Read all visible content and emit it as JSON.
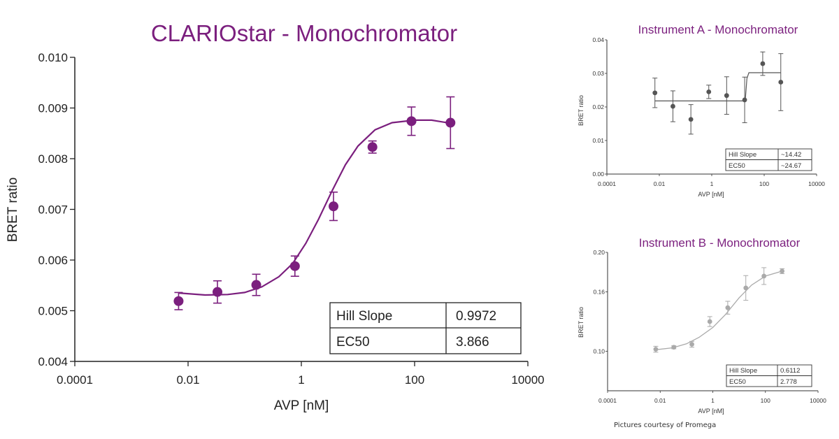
{
  "footer": {
    "credit": "Pictures courtesy of Promega"
  },
  "chart_data": [
    {
      "type": "scatter",
      "title": "CLARIOstar - Monochromator",
      "xlabel": "AVP [nM]",
      "ylabel": "BRET ratio",
      "x_scale": "log",
      "xlim": [
        0.0001,
        10000
      ],
      "ylim": [
        0.004,
        0.01
      ],
      "x_ticks": [
        "0.0001",
        "0.01",
        "1",
        "100",
        "10000"
      ],
      "y_ticks": [
        "0.004",
        "0.005",
        "0.006",
        "0.007",
        "0.008",
        "0.009",
        "0.010"
      ],
      "color": "#7b1f7e",
      "points": [
        {
          "x": 0.0068,
          "y": 0.00519,
          "err": 0.00017
        },
        {
          "x": 0.033,
          "y": 0.00537,
          "err": 0.00022
        },
        {
          "x": 0.16,
          "y": 0.00551,
          "err": 0.00021
        },
        {
          "x": 0.77,
          "y": 0.00588,
          "err": 0.0002
        },
        {
          "x": 3.7,
          "y": 0.00706,
          "err": 0.00028
        },
        {
          "x": 18,
          "y": 0.00823,
          "err": 0.00012
        },
        {
          "x": 88,
          "y": 0.00874,
          "err": 0.00028
        },
        {
          "x": 430,
          "y": 0.00871,
          "err": 0.00051
        }
      ],
      "fit_curve": [
        [
          0.0068,
          0.00535
        ],
        [
          0.02,
          0.00531
        ],
        [
          0.05,
          0.00532
        ],
        [
          0.1,
          0.00536
        ],
        [
          0.2,
          0.00547
        ],
        [
          0.4,
          0.00567
        ],
        [
          0.7,
          0.00593
        ],
        [
          1.2,
          0.00633
        ],
        [
          2,
          0.0068
        ],
        [
          3.5,
          0.00737
        ],
        [
          6,
          0.00788
        ],
        [
          10,
          0.00825
        ],
        [
          20,
          0.00857
        ],
        [
          40,
          0.00871
        ],
        [
          100,
          0.00876
        ],
        [
          200,
          0.00876
        ],
        [
          430,
          0.0087
        ]
      ],
      "table": [
        {
          "label": "Hill Slope",
          "value": "0.9972"
        },
        {
          "label": "EC50",
          "value": "3.866"
        }
      ]
    },
    {
      "type": "scatter",
      "title": "Instrument A - Monochromator",
      "xlabel": "AVP [nM]",
      "ylabel": "BRET ratio",
      "x_scale": "log",
      "xlim": [
        0.0001,
        10000
      ],
      "ylim": [
        0,
        0.04
      ],
      "x_ticks": [
        "0.0001",
        "0.01",
        "1",
        "100",
        "10000"
      ],
      "y_ticks": [
        "0.00",
        "0.01",
        "0.02",
        "0.03",
        "0.04"
      ],
      "color": "#555555",
      "points": [
        {
          "x": 0.0068,
          "y": 0.0242,
          "err": 0.0044
        },
        {
          "x": 0.033,
          "y": 0.0202,
          "err": 0.0046
        },
        {
          "x": 0.16,
          "y": 0.0163,
          "err": 0.0044
        },
        {
          "x": 0.77,
          "y": 0.0245,
          "err": 0.002
        },
        {
          "x": 3.7,
          "y": 0.0234,
          "err": 0.0056
        },
        {
          "x": 18,
          "y": 0.0221,
          "err": 0.0068
        },
        {
          "x": 88,
          "y": 0.0329,
          "err": 0.0035
        },
        {
          "x": 430,
          "y": 0.0274,
          "err": 0.0085
        }
      ],
      "fit_curve": [
        [
          0.0068,
          0.0218
        ],
        [
          16,
          0.0218
        ],
        [
          19,
          0.0222
        ],
        [
          22,
          0.0285
        ],
        [
          26,
          0.0302
        ],
        [
          430,
          0.0302
        ]
      ],
      "table": [
        {
          "label": "Hill Slope",
          "value": "~14.42"
        },
        {
          "label": "EC50",
          "value": "~24.67"
        }
      ]
    },
    {
      "type": "scatter",
      "title": "Instrument B - Monochromator",
      "xlabel": "AVP [nM]",
      "ylabel": "BRET ratio",
      "x_scale": "log",
      "xlim": [
        0.0001,
        10000
      ],
      "ylim": [
        0.06,
        0.2
      ],
      "x_ticks": [
        "0.0001",
        "0.01",
        "1",
        "100",
        "10000"
      ],
      "y_ticks": [
        "0.10",
        "0.16",
        "0.20"
      ],
      "color": "#aaaaaa",
      "points": [
        {
          "x": 0.0068,
          "y": 0.102,
          "err": 0.003
        },
        {
          "x": 0.033,
          "y": 0.104,
          "err": 0.0015
        },
        {
          "x": 0.16,
          "y": 0.107,
          "err": 0.003
        },
        {
          "x": 0.77,
          "y": 0.13,
          "err": 0.005
        },
        {
          "x": 3.7,
          "y": 0.144,
          "err": 0.0065
        },
        {
          "x": 18,
          "y": 0.164,
          "err": 0.0125
        },
        {
          "x": 88,
          "y": 0.176,
          "err": 0.0085
        },
        {
          "x": 430,
          "y": 0.181,
          "err": 0.0025
        }
      ],
      "fit_curve": [
        [
          0.0068,
          0.1015
        ],
        [
          0.03,
          0.1035
        ],
        [
          0.1,
          0.1075
        ],
        [
          0.3,
          0.114
        ],
        [
          1,
          0.124
        ],
        [
          3,
          0.137
        ],
        [
          10,
          0.154
        ],
        [
          30,
          0.167
        ],
        [
          100,
          0.176
        ],
        [
          430,
          0.181
        ]
      ],
      "table": [
        {
          "label": "Hill Slope",
          "value": "0.6112"
        },
        {
          "label": "EC50",
          "value": "2.778"
        }
      ]
    }
  ]
}
